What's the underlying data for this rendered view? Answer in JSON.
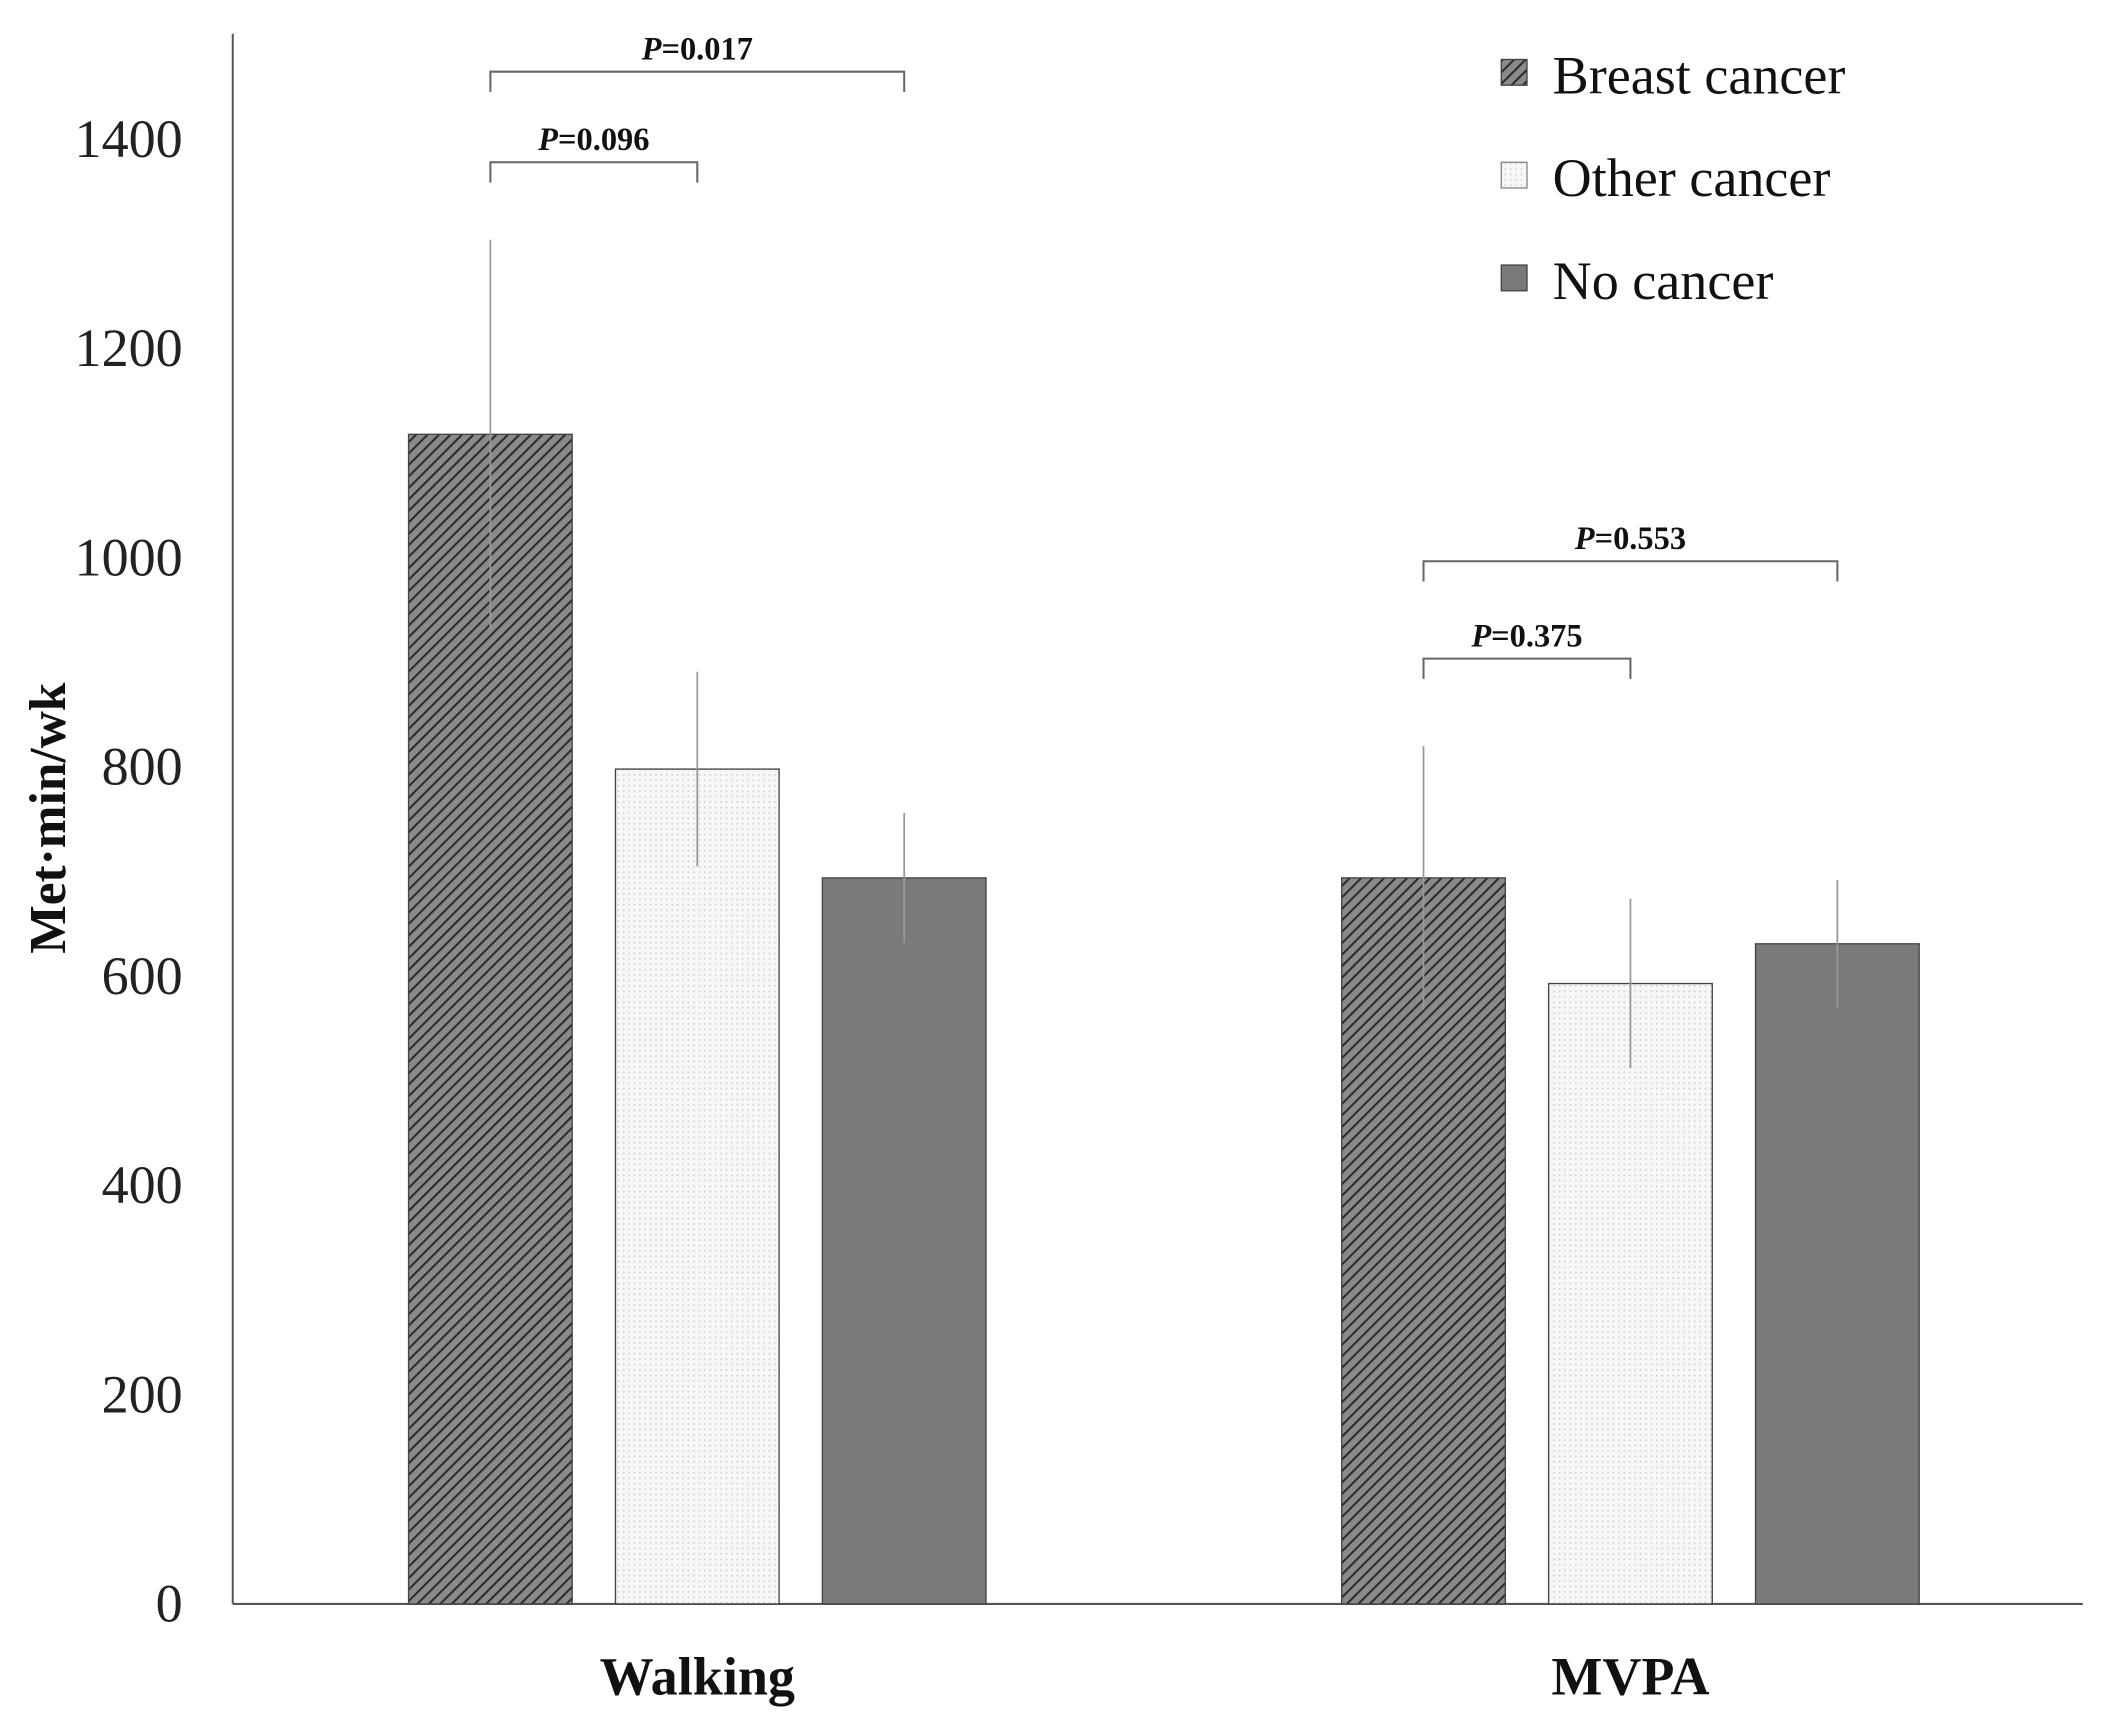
{
  "chart_data": {
    "type": "bar",
    "title": "",
    "xlabel": "",
    "ylabel": "Met·min/wk",
    "ylim": [
      0,
      1400
    ],
    "yticks": [
      0,
      200,
      400,
      600,
      800,
      1000,
      1200,
      1400
    ],
    "grid": false,
    "legend_position": "top-right",
    "categories": [
      "Walking",
      "MVPA"
    ],
    "series": [
      {
        "name": "Breast cancer",
        "pattern": "hatch",
        "color": "#555555",
        "values": [
          1118,
          694
        ],
        "error": [
          186,
          126
        ]
      },
      {
        "name": "Other cancer",
        "pattern": "dots",
        "color": "#f4f4f4",
        "values": [
          798,
          593
        ],
        "error": [
          93,
          81
        ]
      },
      {
        "name": "No cancer",
        "pattern": "solid",
        "color": "#7a7a7a",
        "values": [
          694,
          631
        ],
        "error": [
          62,
          61
        ]
      }
    ],
    "annotations": [
      {
        "category": "Walking",
        "from": "Breast cancer",
        "to": "No cancer",
        "label_prefix": "P",
        "label": "=0.017",
        "level": 2
      },
      {
        "category": "Walking",
        "from": "Breast cancer",
        "to": "Other cancer",
        "label_prefix": "P",
        "label": "=0.096",
        "level": 1
      },
      {
        "category": "MVPA",
        "from": "Breast cancer",
        "to": "No cancer",
        "label_prefix": "P",
        "label": "=0.553",
        "level": 2
      },
      {
        "category": "MVPA",
        "from": "Breast cancer",
        "to": "Other cancer",
        "label_prefix": "P",
        "label": "=0.375",
        "level": 1
      }
    ]
  }
}
